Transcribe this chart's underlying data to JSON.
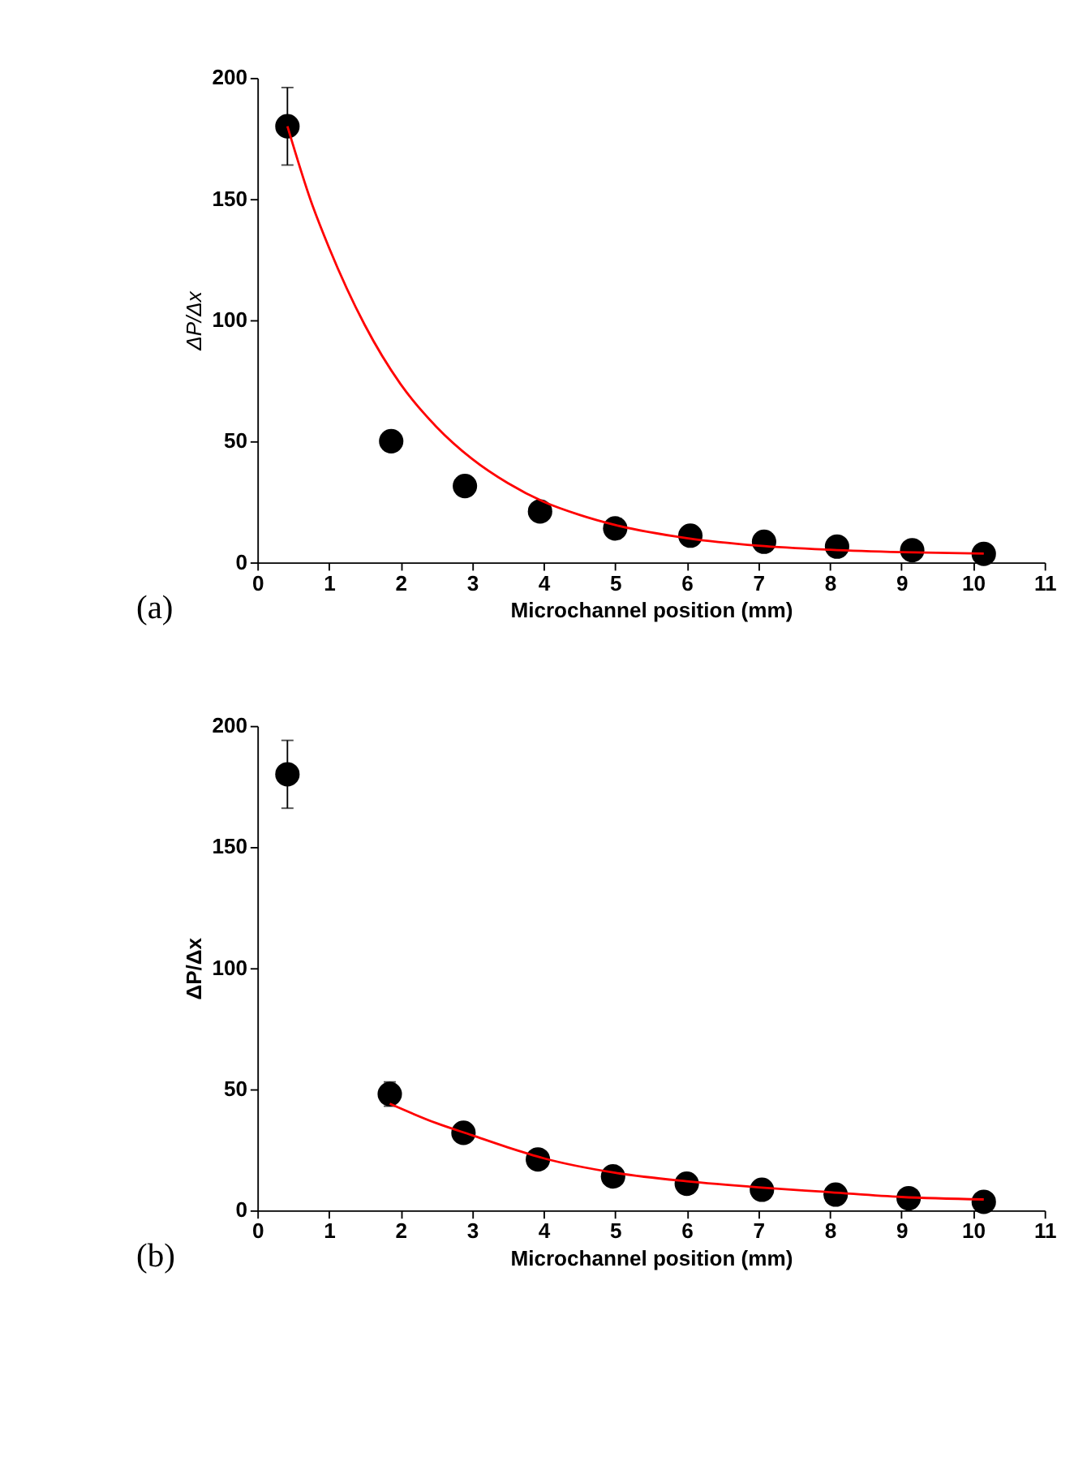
{
  "chart_data": [
    {
      "type": "scatter",
      "xlabel": "Microchannel position (mm)",
      "ylabel": "ΔP/Δx",
      "xlim": [
        0,
        11
      ],
      "xticks": [
        0,
        1,
        2,
        3,
        4,
        5,
        6,
        7,
        8,
        9,
        10,
        11
      ],
      "ylim": [
        0,
        200
      ],
      "yticks": [
        0,
        50,
        100,
        150,
        200
      ],
      "grid": false,
      "annotations": [
        "(a)"
      ],
      "series": [
        {
          "color": "#000000",
          "marker": "circle",
          "x": [
            0.42,
            1.87,
            2.9,
            3.95,
            5.0,
            6.05,
            7.08,
            8.1,
            9.15,
            10.15
          ],
          "values": [
            180,
            50,
            31.5,
            21,
            14,
            11,
            8.5,
            6.5,
            5,
            3.5
          ],
          "errors": [
            16,
            4,
            null,
            null,
            null,
            null,
            null,
            null,
            null,
            null
          ]
        },
        {
          "type": "line",
          "color": "#ff0000",
          "marker": "none",
          "line_style": "solid",
          "x": [
            0.42,
            0.75,
            1,
            1.5,
            2,
            2.5,
            3,
            3.5,
            4,
            4.5,
            5,
            6,
            7,
            8,
            9,
            10.15
          ],
          "values": [
            180,
            149,
            130,
            98,
            73.6,
            56,
            42.7,
            32.7,
            25,
            19.6,
            15.4,
            10,
            6.9,
            5.2,
            4.2,
            3.6
          ]
        }
      ]
    },
    {
      "type": "scatter",
      "xlabel": "Microchannel position (mm)",
      "ylabel": "ΔP/Δx",
      "xlim": [
        0,
        11
      ],
      "xticks": [
        0,
        1,
        2,
        3,
        4,
        5,
        6,
        7,
        8,
        9,
        10,
        11
      ],
      "ylim": [
        0,
        200
      ],
      "yticks": [
        0,
        50,
        100,
        150,
        200
      ],
      "grid": false,
      "annotations": [
        "(b)"
      ],
      "series": [
        {
          "color": "#000000",
          "marker": "circle",
          "x": [
            0.42,
            1.85,
            2.88,
            3.92,
            4.97,
            6.0,
            7.05,
            8.08,
            9.1,
            10.15
          ],
          "values": [
            180,
            48,
            32,
            21,
            14,
            11,
            8.5,
            6.5,
            5,
            3.5
          ],
          "errors": [
            14,
            5,
            null,
            null,
            null,
            null,
            null,
            null,
            null,
            null
          ]
        },
        {
          "type": "line",
          "color": "#ff0000",
          "marker": "none",
          "line_style": "solid",
          "x": [
            1.85,
            2.5,
            3,
            3.5,
            4,
            5,
            6,
            7,
            8,
            9,
            10.15
          ],
          "values": [
            44,
            36,
            31,
            26,
            21.5,
            15.5,
            12,
            9.5,
            7.5,
            5.5,
            4.5
          ]
        }
      ]
    }
  ]
}
